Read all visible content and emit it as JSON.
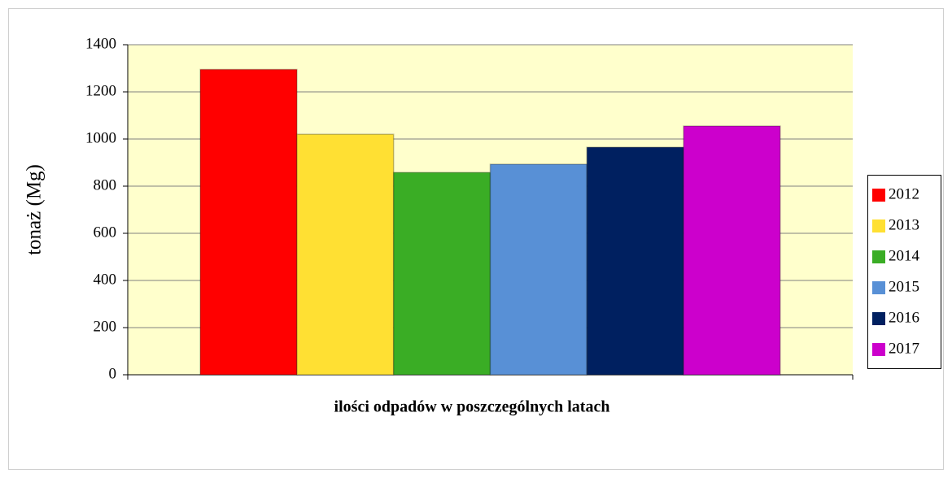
{
  "chart_data": {
    "type": "bar",
    "x_label": "ilości odpadów w poszczególnych latach",
    "y_label": "tonaż (Mg)",
    "categories": [
      null
    ],
    "series": [
      {
        "name": "2012",
        "color": "#ff0000",
        "values": [
          1295
        ]
      },
      {
        "name": "2013",
        "color": "#ffe033",
        "values": [
          1020
        ]
      },
      {
        "name": "2014",
        "color": "#3aad25",
        "values": [
          858
        ]
      },
      {
        "name": "2015",
        "color": "#5890d6",
        "values": [
          893
        ]
      },
      {
        "name": "2016",
        "color": "#002060",
        "values": [
          965
        ]
      },
      {
        "name": "2017",
        "color": "#cc00cc",
        "values": [
          1055
        ]
      }
    ],
    "ylim": [
      0,
      1400
    ],
    "yticks": [
      0,
      200,
      400,
      600,
      800,
      1000,
      1200,
      1400
    ],
    "grid": true,
    "legend": "right"
  }
}
